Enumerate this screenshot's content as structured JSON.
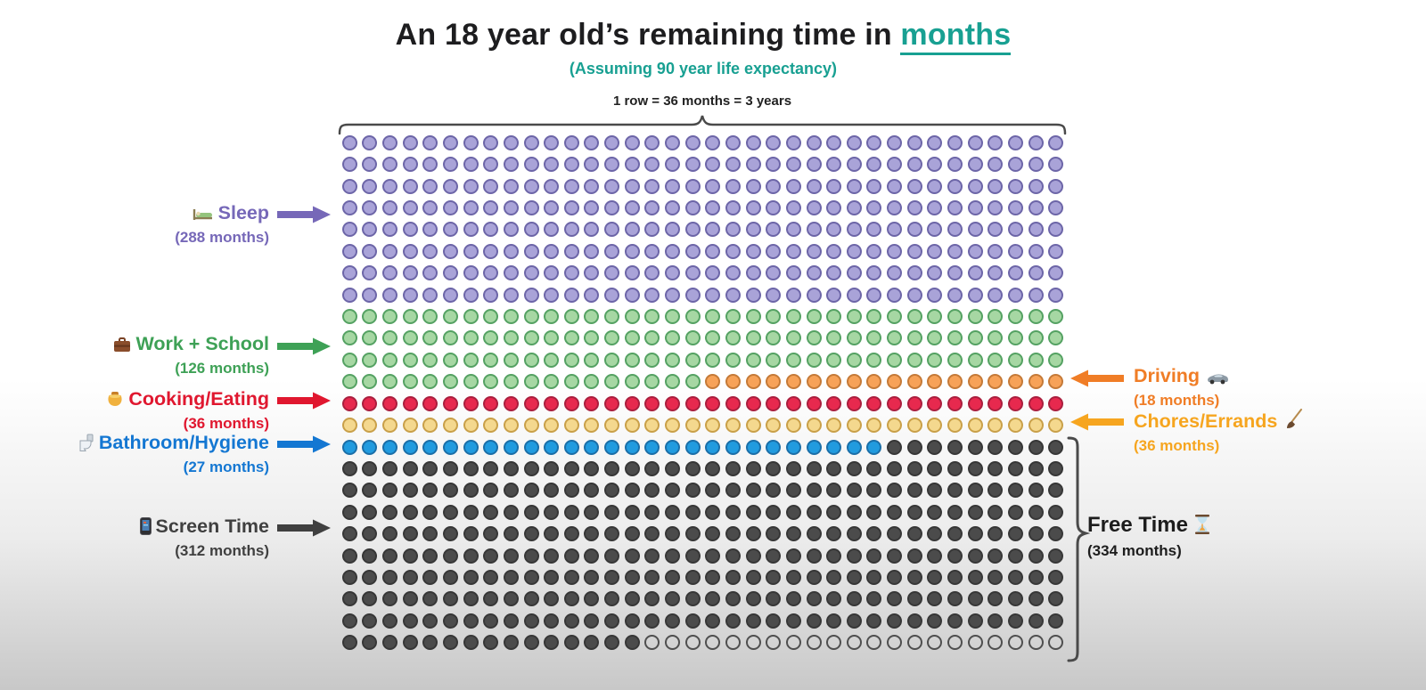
{
  "title": {
    "prefix": "An 18 year old’s remaining time in",
    "highlight": "months",
    "subtitle": "(Assuming 90 year life expectancy)"
  },
  "row_note": "1 row = 36 months = 3 years",
  "palette": {
    "sleep": {
      "text": "#7668b8",
      "fill": "#a9a3d8",
      "border": "#6d66a8"
    },
    "work": {
      "text": "#3ea156",
      "fill": "#a6d7a3",
      "border": "#55a263"
    },
    "driving": {
      "text": "#f07d26",
      "fill": "#f7a258",
      "border": "#c57a38"
    },
    "cooking": {
      "text": "#e0172f",
      "fill": "#e7294e",
      "border": "#aa1f3e"
    },
    "chores": {
      "text": "#f6a51f",
      "fill": "#f4d88e",
      "border": "#c9a049"
    },
    "bathroom": {
      "text": "#1477d2",
      "fill": "#219bdf",
      "border": "#1b6fa8"
    },
    "screen": {
      "text": "#404040",
      "fill": "#4b4b4b",
      "border": "#373737"
    },
    "free": {
      "text": "#1d1d1d"
    },
    "empty": {
      "fill": "transparent",
      "border": "#4f4f4f"
    },
    "accent_teal": "#18a092",
    "brace": "#4a4a4a"
  },
  "labels": {
    "sleep": {
      "title": "Sleep",
      "months": "(288 months)"
    },
    "work": {
      "title": "Work + School",
      "months": "(126 months)"
    },
    "cooking": {
      "title": "Cooking/Eating",
      "months": "(36 months)"
    },
    "bathroom": {
      "title": "Bathroom/Hygiene",
      "months": "(27 months)"
    },
    "screen": {
      "title": "Screen Time",
      "months": "(312 months)"
    },
    "driving": {
      "title": "Driving",
      "months": "(18 months)"
    },
    "chores": {
      "title": "Chores/Errands",
      "months": "(36 months)"
    },
    "free": {
      "title": "Free Time",
      "months": "(334 months)"
    }
  },
  "icons": {
    "sleep": "bed-icon",
    "work": "briefcase-icon",
    "cooking": "cooking-pot-icon",
    "bathroom": "toilet-icon",
    "screen": "smartphone-icon",
    "driving": "car-icon",
    "chores": "broom-icon",
    "free": "hourglass-icon"
  },
  "chart_data": {
    "type": "waffle",
    "title": "An 18 year old’s remaining time in months",
    "subtitle": "Assuming 90 year life expectancy",
    "legend_note": "1 row = 36 months = 3 years",
    "grid": {
      "rows": 24,
      "cols": 36,
      "months_per_cell": 1,
      "total_months": 864
    },
    "series": [
      {
        "name": "Sleep",
        "months": 288,
        "color": "#a9a3d8"
      },
      {
        "name": "Work + School",
        "months": 126,
        "color": "#a6d7a3"
      },
      {
        "name": "Driving",
        "months": 18,
        "color": "#f7a258"
      },
      {
        "name": "Cooking/Eating",
        "months": 36,
        "color": "#e7294e"
      },
      {
        "name": "Chores/Errands",
        "months": 36,
        "color": "#f4d88e"
      },
      {
        "name": "Bathroom/Hygiene",
        "months": 27,
        "color": "#219bdf"
      },
      {
        "name": "Screen Time",
        "months": 312,
        "color": "#4b4b4b"
      },
      {
        "name": "Free Time",
        "months": 334,
        "color": "none"
      }
    ],
    "fill_sequence": [
      {
        "key": "sleep",
        "count": 288
      },
      {
        "key": "work",
        "count": 126
      },
      {
        "key": "driving",
        "count": 18
      },
      {
        "key": "cooking",
        "count": 36
      },
      {
        "key": "chores",
        "count": 36
      },
      {
        "key": "bathroom",
        "count": 27
      },
      {
        "key": "screen",
        "count": 312
      },
      {
        "key": "empty",
        "count": 21
      }
    ]
  }
}
